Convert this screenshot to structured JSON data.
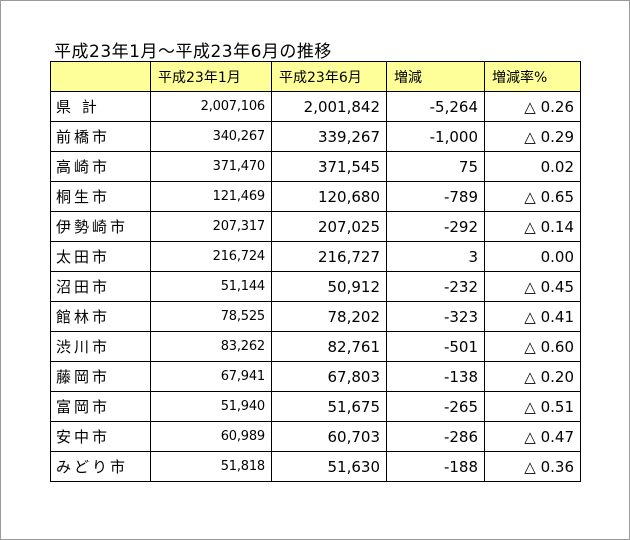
{
  "title": "平成23年1月～平成23年6月の推移",
  "table": {
    "headers": [
      "",
      "平成23年1月",
      "平成23年6月",
      "増減",
      "増減率%"
    ],
    "rows": [
      {
        "name": "県 計",
        "jan": "2,007,106",
        "jun": "2,001,842",
        "diff": "-5,264",
        "rate": "△ 0.26"
      },
      {
        "name": "前橋市",
        "jan": "340,267",
        "jun": "339,267",
        "diff": "-1,000",
        "rate": "△ 0.29"
      },
      {
        "name": "高崎市",
        "jan": "371,470",
        "jun": "371,545",
        "diff": "75",
        "rate": "0.02"
      },
      {
        "name": "桐生市",
        "jan": "121,469",
        "jun": "120,680",
        "diff": "-789",
        "rate": "△ 0.65"
      },
      {
        "name": "伊勢崎市",
        "jan": "207,317",
        "jun": "207,025",
        "diff": "-292",
        "rate": "△ 0.14"
      },
      {
        "name": "太田市",
        "jan": "216,724",
        "jun": "216,727",
        "diff": "3",
        "rate": "0.00"
      },
      {
        "name": "沼田市",
        "jan": "51,144",
        "jun": "50,912",
        "diff": "-232",
        "rate": "△ 0.45"
      },
      {
        "name": "館林市",
        "jan": "78,525",
        "jun": "78,202",
        "diff": "-323",
        "rate": "△ 0.41"
      },
      {
        "name": "渋川市",
        "jan": "83,262",
        "jun": "82,761",
        "diff": "-501",
        "rate": "△ 0.60"
      },
      {
        "name": "藤岡市",
        "jan": "67,941",
        "jun": "67,803",
        "diff": "-138",
        "rate": "△ 0.20"
      },
      {
        "name": "富岡市",
        "jan": "51,940",
        "jun": "51,675",
        "diff": "-265",
        "rate": "△ 0.51"
      },
      {
        "name": "安中市",
        "jan": "60,989",
        "jun": "60,703",
        "diff": "-286",
        "rate": "△ 0.47"
      },
      {
        "name": "みどり市",
        "jan": "51,818",
        "jun": "51,630",
        "diff": "-188",
        "rate": "△ 0.36"
      }
    ]
  },
  "colors": {
    "header_bg": "#ffff99",
    "border": "#000000",
    "frame": "#9a9a9a"
  }
}
